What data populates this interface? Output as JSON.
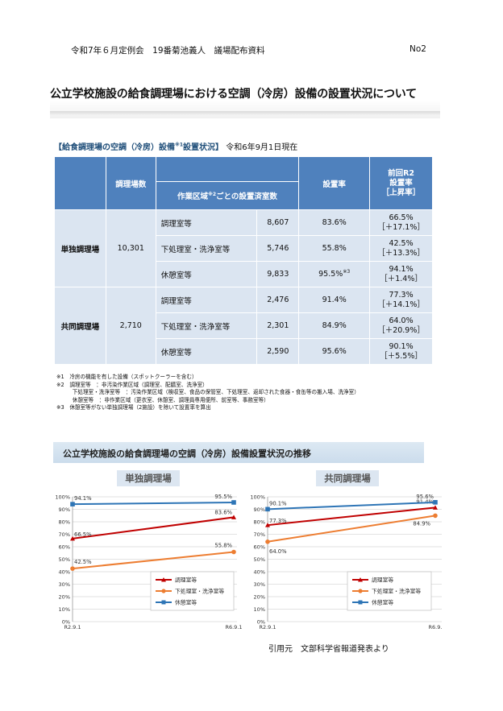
{
  "header": {
    "left": "令和7年６月定例会　19番菊池義人　議場配布資料",
    "right": "No2"
  },
  "title": "公立学校施設の給食調理場における空調（冷房）設備の設置状況について",
  "section": {
    "bracket": "【給食調理場の空調（冷房）設備",
    "note": "※1",
    "bracket2": "設置状況】",
    "date": "令和6年9月1日現在"
  },
  "table": {
    "h_count": "調理場数",
    "h_rooms": "作業区域",
    "h_rooms_note": "※2",
    "h_rooms2": "ごとの設置済室数",
    "h_rate": "設置率",
    "h_prev": "前回R2\n設置率\n［上昇率］",
    "groups": [
      {
        "name": "単独調理場",
        "count": "10,301",
        "rows": [
          {
            "area": "調理室等",
            "rooms": "8,607",
            "rate": "83.6%",
            "rate_note": "",
            "prev": "66.5%",
            "diff": "［＋17.1%］"
          },
          {
            "area": "下処理室・洗浄室等",
            "rooms": "5,746",
            "rate": "55.8%",
            "rate_note": "",
            "prev": "42.5%",
            "diff": "［＋13.3%］"
          },
          {
            "area": "休憩室等",
            "rooms": "9,833",
            "rate": "95.5%",
            "rate_note": "※3",
            "prev": "94.1%",
            "diff": "［＋1.4%］"
          }
        ]
      },
      {
        "name": "共同調理場",
        "count": "2,710",
        "rows": [
          {
            "area": "調理室等",
            "rooms": "2,476",
            "rate": "91.4%",
            "rate_note": "",
            "prev": "77.3%",
            "diff": "［＋14.1%］"
          },
          {
            "area": "下処理室・洗浄室等",
            "rooms": "2,301",
            "rate": "84.9%",
            "rate_note": "",
            "prev": "64.0%",
            "diff": "［＋20.9%］"
          },
          {
            "area": "休憩室等",
            "rooms": "2,590",
            "rate": "95.6%",
            "rate_note": "",
            "prev": "90.1%",
            "diff": "［＋5.5%］"
          }
        ]
      }
    ]
  },
  "notes": [
    "※1　冷房の機能を有した設備（スポットクーラーを含む）",
    "※2　調理室等　：非汚染作業区域（調理室、配膳室、洗浄室）",
    "　　　下処理室・洗浄室等　：汚染作業区域（検収室、食品の保管室、下処理室、返却された食器・食缶等の搬入場、洗浄室）",
    "　　　休憩室等　：非作業区域（更衣室、休憩室、調理員専用便所、前室等、事務室等）",
    "※3　休憩室等がない単独調理場（2施設）を除いて設置率を算出"
  ],
  "trend_title": "公立学校施設の給食調理場の空調（冷房）設備設置状況の推移",
  "source": "引用元　文部科学省報道発表より",
  "chart_data": [
    {
      "type": "line",
      "title": "単独調理場",
      "categories": [
        "R2.9.1",
        "R6.9.1"
      ],
      "ylim": [
        0,
        100
      ],
      "yticks": [
        "0%",
        "10%",
        "20%",
        "30%",
        "40%",
        "50%",
        "60%",
        "70%",
        "80%",
        "90%",
        "100%"
      ],
      "series": [
        {
          "name": "調理室等",
          "color": "#c00000",
          "values": [
            66.5,
            83.6
          ],
          "labels": [
            "66.5%",
            "83.6%"
          ]
        },
        {
          "name": "下処理室・洗浄室等",
          "color": "#ed7d31",
          "values": [
            42.5,
            55.8
          ],
          "labels": [
            "42.5%",
            "55.8%"
          ]
        },
        {
          "name": "休憩室等",
          "color": "#2e75b6",
          "values": [
            94.1,
            95.5
          ],
          "labels": [
            "94.1%",
            "95.5%"
          ]
        }
      ]
    },
    {
      "type": "line",
      "title": "共同調理場",
      "categories": [
        "R2.9.1",
        "R6.9."
      ],
      "ylim": [
        0,
        100
      ],
      "yticks": [
        "0%",
        "10%",
        "20%",
        "30%",
        "40%",
        "50%",
        "60%",
        "70%",
        "80%",
        "90%",
        "100%"
      ],
      "series": [
        {
          "name": "調理室等",
          "color": "#c00000",
          "values": [
            77.3,
            91.4
          ],
          "labels": [
            "77.3%",
            "91.4%"
          ]
        },
        {
          "name": "下処理室・洗浄室等",
          "color": "#ed7d31",
          "values": [
            64.0,
            84.9
          ],
          "labels": [
            "64.0%",
            "84.9%"
          ]
        },
        {
          "name": "休憩室等",
          "color": "#2e75b6",
          "values": [
            90.1,
            95.6
          ],
          "labels": [
            "90.1%",
            "95.6%"
          ]
        }
      ]
    }
  ]
}
